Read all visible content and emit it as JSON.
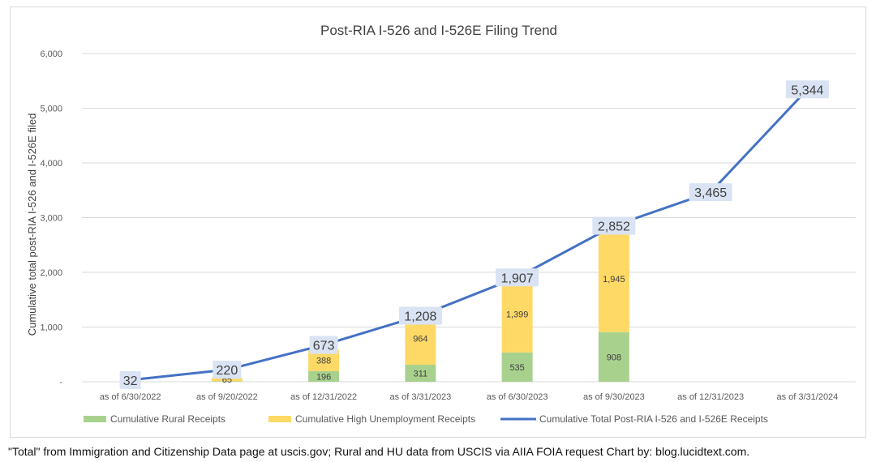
{
  "chart_data": {
    "type": "bar",
    "title": "Post-RIA I-526 and I-526E Filing Trend",
    "ylabel": "Cumulative total post-RIA I-526 and I-526E filed",
    "xlabel": "",
    "ylim": [
      0,
      6000
    ],
    "yticks": [
      0,
      1000,
      2000,
      3000,
      4000,
      5000,
      6000
    ],
    "ytick_labels": [
      "-",
      "1,000",
      "2,000",
      "3,000",
      "4,000",
      "5,000",
      "6,000"
    ],
    "grid": true,
    "legend_position": "bottom",
    "categories": [
      "as of 6/30/2022",
      "as of 9/20/2022",
      "as of 12/31/2022",
      "as of 3/31/2023",
      "as of 6/30/2023",
      "as of 9/30/2023",
      "as of 12/31/2023",
      "as of 3/31/2024"
    ],
    "series": [
      {
        "name": "Cumulative Rural Receipts",
        "kind": "stacked-bar",
        "color": "#a9d18e",
        "values": [
          null,
          10,
          196,
          311,
          535,
          908,
          null,
          null
        ],
        "labels": [
          "",
          "",
          "196",
          "311",
          "535",
          "908",
          "",
          ""
        ]
      },
      {
        "name": "Cumulative High Unemployment Receipts",
        "kind": "stacked-bar",
        "color": "#ffd966",
        "values": [
          null,
          65,
          388,
          964,
          1399,
          1945,
          null,
          null
        ],
        "labels": [
          "",
          "65",
          "388",
          "964",
          "1,399",
          "1,945",
          "",
          ""
        ]
      },
      {
        "name": "Cumulative Total Post-RIA I-526 and I-526E Receipts",
        "kind": "line",
        "color": "#4472c4",
        "values": [
          32,
          220,
          673,
          1208,
          1907,
          2852,
          3465,
          5344
        ],
        "labels": [
          "32",
          "220",
          "673",
          "1,208",
          "1,907",
          "2,852",
          "3,465",
          "5,344"
        ]
      }
    ]
  },
  "footer": {
    "note": "\"Total\" from Immigration and Citizenship Data page at uscis.gov; Rural and HU data from USCIS via AIIA FOIA request Chart by: blog.lucidtext.com."
  }
}
